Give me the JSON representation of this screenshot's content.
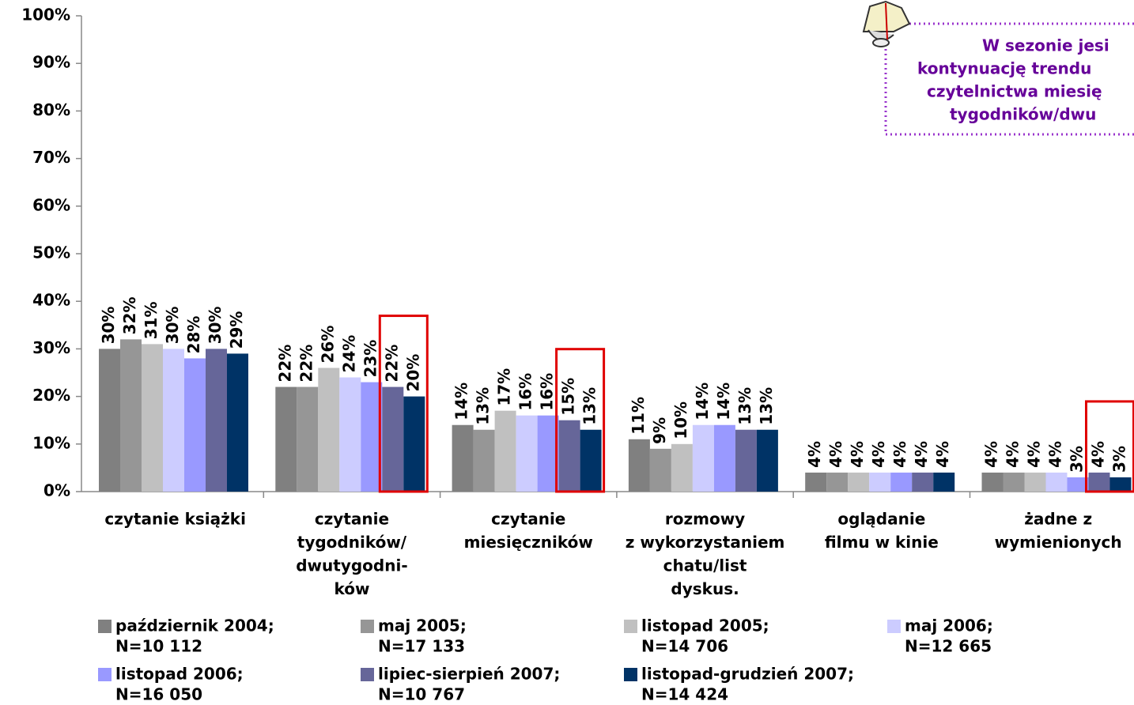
{
  "chart_data": {
    "type": "bar",
    "categories": [
      [
        "czytanie książki"
      ],
      [
        "czytanie",
        "tygodników/",
        "dwutygodni-",
        "ków"
      ],
      [
        "czytanie",
        "miesięczników"
      ],
      [
        "rozmowy",
        "z wykorzystaniem",
        "chatu/list",
        "dyskus."
      ],
      [
        "oglądanie",
        "filmu w kinie"
      ],
      [
        "żadne z",
        "wymienionych"
      ]
    ],
    "series": [
      {
        "name": [
          "październik 2004;",
          "N=10 112"
        ],
        "color": "#808080",
        "values": [
          30,
          22,
          14,
          11,
          4,
          4
        ],
        "value_labels": [
          "30%",
          "22%",
          "14%",
          "11%",
          "4%",
          "4%"
        ]
      },
      {
        "name": [
          "maj 2005;",
          "N=17 133"
        ],
        "color": "#969696",
        "values": [
          32,
          22,
          13,
          9,
          4,
          4
        ],
        "value_labels": [
          "32%",
          "22%",
          "13%",
          "9%",
          "4%",
          "4%"
        ]
      },
      {
        "name": [
          "listopad 2005;",
          "N=14 706"
        ],
        "color": "#c0c0c0",
        "values": [
          31,
          26,
          17,
          10,
          4,
          4
        ],
        "value_labels": [
          "31%",
          "26%",
          "17%",
          "10%",
          "4%",
          "4%"
        ]
      },
      {
        "name": [
          "maj 2006;",
          "N=12 665"
        ],
        "color": "#ccccff",
        "values": [
          30,
          24,
          16,
          14,
          4,
          4
        ],
        "value_labels": [
          "30%",
          "24%",
          "16%",
          "14%",
          "4%",
          "4%"
        ]
      },
      {
        "name": [
          "listopad 2006;",
          "N=16 050"
        ],
        "color": "#9999ff",
        "values": [
          28,
          23,
          16,
          14,
          4,
          3
        ],
        "value_labels": [
          "28%",
          "23%",
          "16%",
          "14%",
          "4%",
          "3%"
        ]
      },
      {
        "name": [
          "lipiec-sierpień 2007;",
          "N=10 767"
        ],
        "color": "#666699",
        "values": [
          30,
          22,
          15,
          13,
          4,
          4
        ],
        "value_labels": [
          "30%",
          "22%",
          "15%",
          "13%",
          "4%",
          "4%"
        ]
      },
      {
        "name": [
          "listopad-grudzień 2007;",
          "N=14 424"
        ],
        "color": "#003366",
        "values": [
          29,
          20,
          13,
          13,
          4,
          3
        ],
        "value_labels": [
          "29%",
          "20%",
          "13%",
          "13%",
          "4%",
          "3%"
        ]
      }
    ],
    "ylim": [
      0,
      100
    ],
    "yticks": [
      {
        "value": 0,
        "label": "0%"
      },
      {
        "value": 10,
        "label": "10%"
      },
      {
        "value": 20,
        "label": "20%"
      },
      {
        "value": 30,
        "label": "30%"
      },
      {
        "value": 40,
        "label": "40%"
      },
      {
        "value": 50,
        "label": "50%"
      },
      {
        "value": 60,
        "label": "60%"
      },
      {
        "value": 70,
        "label": "70%"
      },
      {
        "value": 80,
        "label": "80%"
      },
      {
        "value": 90,
        "label": "90%"
      },
      {
        "value": 100,
        "label": "100%"
      }
    ],
    "annotation": [
      "W sezonie jesi",
      "kontynuację trendu",
      "czytelnictwa miesię",
      "tygodników/dwu"
    ]
  }
}
